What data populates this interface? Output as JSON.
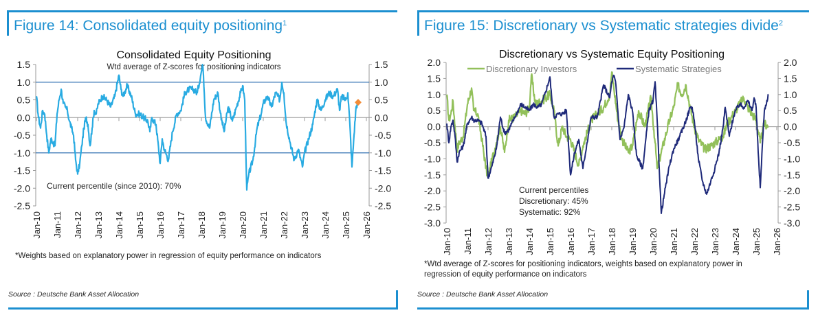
{
  "left": {
    "figure_title": "Figure 14: Consolidated equity positioning",
    "figure_sup": "1",
    "footnote": "*Weights based on explanatory power in regression of equity performance on indicators",
    "source": "Source : Deutsche Bank Asset Allocation"
  },
  "right": {
    "figure_title": "Figure 15: Discretionary vs Systematic strategies divide",
    "figure_sup": "2",
    "footnote_line1": "*Wtd average of Z-scores for positioning indicators, weights based on explanatory power in",
    "footnote_line2": "regression of equity performance on indicators",
    "source": "Source : Deutsche Bank Asset Allocation"
  },
  "colors": {
    "accent": "#1b8fd0",
    "consolidated_line": "#29abe2",
    "current_marker": "#f28c38",
    "reference_line": "#2f6fb0",
    "discretionary": "#92c05a",
    "systematic": "#1f2a7a",
    "axis": "#999999"
  },
  "chart_data": [
    {
      "type": "line",
      "title": "Consolidated Equity Positioning",
      "subtitle": "Wtd average of Z-scores for positioning indicators",
      "xlabel": "",
      "ylabel": "",
      "ylim": [
        -2.5,
        1.5
      ],
      "yticks": [
        "1.5",
        "1.0",
        "0.5",
        "0.0",
        "-0.5",
        "-1.0",
        "-1.5",
        "-2.0",
        "-2.5"
      ],
      "ytick_values": [
        1.5,
        1.0,
        0.5,
        0.0,
        -0.5,
        -1.0,
        -1.5,
        -2.0,
        -2.5
      ],
      "xlim": [
        2010.0,
        2026.0
      ],
      "xticks": [
        "Jan-10",
        "Jan-11",
        "Jan-12",
        "Jan-13",
        "Jan-14",
        "Jan-15",
        "Jan-16",
        "Jan-17",
        "Jan-18",
        "Jan-19",
        "Jan-20",
        "Jan-21",
        "Jan-22",
        "Jan-23",
        "Jan-24",
        "Jan-25",
        "Jan-26"
      ],
      "reference_lines": [
        1.0,
        -1.0
      ],
      "annotation": "Current percentile (since 2010): 70%",
      "current_point": {
        "x": 2025.6,
        "y": 0.43
      },
      "series": [
        {
          "name": "Consolidated Equity Positioning",
          "x": [
            2010.0,
            2010.1,
            2010.2,
            2010.3,
            2010.4,
            2010.5,
            2010.6,
            2010.7,
            2010.8,
            2010.9,
            2011.0,
            2011.1,
            2011.2,
            2011.3,
            2011.4,
            2011.5,
            2011.6,
            2011.7,
            2011.8,
            2011.9,
            2012.0,
            2012.1,
            2012.2,
            2012.3,
            2012.4,
            2012.5,
            2012.6,
            2012.7,
            2012.8,
            2012.9,
            2013.0,
            2013.2,
            2013.4,
            2013.6,
            2013.8,
            2014.0,
            2014.1,
            2014.2,
            2014.4,
            2014.6,
            2014.8,
            2015.0,
            2015.2,
            2015.4,
            2015.5,
            2015.6,
            2015.8,
            2016.0,
            2016.1,
            2016.2,
            2016.4,
            2016.6,
            2016.8,
            2017.0,
            2017.2,
            2017.4,
            2017.6,
            2017.8,
            2018.0,
            2018.05,
            2018.1,
            2018.2,
            2018.4,
            2018.6,
            2018.8,
            2018.9,
            2019.0,
            2019.1,
            2019.3,
            2019.5,
            2019.7,
            2019.9,
            2020.0,
            2020.1,
            2020.2,
            2020.3,
            2020.5,
            2020.7,
            2020.9,
            2021.0,
            2021.2,
            2021.4,
            2021.6,
            2021.8,
            2021.9,
            2022.0,
            2022.1,
            2022.3,
            2022.5,
            2022.7,
            2022.9,
            2023.0,
            2023.2,
            2023.4,
            2023.6,
            2023.8,
            2024.0,
            2024.2,
            2024.4,
            2024.6,
            2024.7,
            2024.8,
            2025.0,
            2025.1,
            2025.2,
            2025.3,
            2025.4,
            2025.5,
            2025.6
          ],
          "y": [
            0.6,
            0.0,
            -0.3,
            0.2,
            0.1,
            -0.5,
            -1.0,
            -0.6,
            -0.7,
            -0.8,
            0.1,
            0.5,
            0.8,
            0.4,
            0.3,
            0.2,
            -0.1,
            -0.3,
            -0.5,
            -1.2,
            -1.6,
            -1.3,
            -0.8,
            -0.3,
            0.0,
            -0.2,
            -0.8,
            -0.3,
            0.2,
            0.1,
            0.4,
            0.6,
            0.5,
            0.3,
            0.6,
            1.2,
            0.8,
            0.6,
            0.9,
            0.6,
            0.1,
            0.1,
            0.0,
            -0.1,
            -0.4,
            0.0,
            -0.2,
            -1.3,
            -0.6,
            -0.9,
            -1.2,
            -0.4,
            0.1,
            0.2,
            0.7,
            0.8,
            0.8,
            0.7,
            1.3,
            1.5,
            1.2,
            0.0,
            -0.3,
            0.5,
            0.7,
            0.2,
            -0.1,
            -0.4,
            0.3,
            -0.1,
            0.3,
            0.7,
            0.9,
            0.5,
            -2.05,
            -1.6,
            -1.2,
            -0.3,
            0.1,
            0.4,
            0.6,
            0.3,
            0.7,
            0.5,
            1.0,
            0.7,
            -0.1,
            -0.7,
            -1.2,
            -0.9,
            -1.4,
            -1.0,
            -0.6,
            -0.2,
            0.5,
            0.2,
            0.5,
            0.7,
            0.6,
            0.8,
            0.2,
            0.6,
            0.5,
            0.7,
            -0.2,
            -1.4,
            -0.5,
            0.3,
            0.45
          ]
        }
      ]
    },
    {
      "type": "line",
      "title": "Discretionary  vs Systematic Equity Positioning",
      "xlabel": "",
      "ylabel": "",
      "ylim": [
        -3.0,
        2.0
      ],
      "yticks": [
        "2.0",
        "1.5",
        "1.0",
        "0.5",
        "0.0",
        "-0.5",
        "-1.0",
        "-1.5",
        "-2.0",
        "-2.5",
        "-3.0"
      ],
      "ytick_values": [
        2.0,
        1.5,
        1.0,
        0.5,
        0.0,
        -0.5,
        -1.0,
        -1.5,
        -2.0,
        -2.5,
        -3.0
      ],
      "xlim": [
        2010.0,
        2026.0
      ],
      "xticks": [
        "Jan-10",
        "Jan-11",
        "Jan-12",
        "Jan-13",
        "Jan-14",
        "Jan-15",
        "Jan-16",
        "Jan-17",
        "Jan-18",
        "Jan-19",
        "Jan-20",
        "Jan-21",
        "Jan-22",
        "Jan-23",
        "Jan-24",
        "Jan-25",
        "Jan-26"
      ],
      "legend": [
        "Discretionary Investors",
        "Systematic Strategies"
      ],
      "legend_position": "top",
      "annotation": [
        "Current percentiles",
        "Discretionary: 45%",
        "Systematic: 92%"
      ],
      "series": [
        {
          "name": "Discretionary Investors",
          "x": [
            2010.0,
            2010.1,
            2010.2,
            2010.3,
            2010.4,
            2010.5,
            2010.6,
            2010.8,
            2011.0,
            2011.2,
            2011.3,
            2011.5,
            2011.7,
            2011.9,
            2012.0,
            2012.2,
            2012.4,
            2012.6,
            2012.8,
            2013.0,
            2013.3,
            2013.6,
            2013.8,
            2014.0,
            2014.1,
            2014.3,
            2014.6,
            2014.8,
            2015.0,
            2015.2,
            2015.4,
            2015.6,
            2015.8,
            2016.0,
            2016.2,
            2016.4,
            2016.6,
            2016.8,
            2017.0,
            2017.3,
            2017.6,
            2017.9,
            2018.0,
            2018.1,
            2018.3,
            2018.5,
            2018.8,
            2019.0,
            2019.3,
            2019.6,
            2019.9,
            2020.1,
            2020.2,
            2020.4,
            2020.6,
            2020.8,
            2021.0,
            2021.2,
            2021.4,
            2021.6,
            2021.8,
            2022.0,
            2022.2,
            2022.5,
            2022.8,
            2023.0,
            2023.2,
            2023.4,
            2023.6,
            2023.8,
            2024.0,
            2024.2,
            2024.4,
            2024.6,
            2024.8,
            2025.0,
            2025.2,
            2025.4,
            2025.6
          ],
          "y": [
            1.0,
            0.2,
            0.4,
            0.8,
            0.0,
            -0.7,
            -0.5,
            -0.3,
            0.7,
            1.2,
            0.5,
            0.4,
            -0.4,
            -1.3,
            -1.6,
            -1.0,
            -0.5,
            0.0,
            -0.8,
            0.2,
            0.3,
            0.5,
            0.4,
            0.6,
            1.6,
            0.7,
            0.8,
            0.9,
            1.0,
            0.5,
            -0.6,
            0.0,
            -0.3,
            -0.4,
            -0.8,
            -1.2,
            -0.6,
            -0.2,
            0.2,
            0.4,
            0.6,
            1.0,
            1.7,
            1.2,
            0.2,
            -0.4,
            -0.8,
            -0.6,
            0.5,
            0.0,
            0.9,
            -0.5,
            -1.3,
            -0.8,
            -0.3,
            0.2,
            0.6,
            1.3,
            1.0,
            1.3,
            0.6,
            0.0,
            -0.4,
            -0.7,
            -0.6,
            -0.5,
            -0.4,
            -0.3,
            0.1,
            0.3,
            0.5,
            0.7,
            0.9,
            0.6,
            0.4,
            0.2,
            -0.5,
            0.1,
            0.0
          ]
        },
        {
          "name": "Systematic Strategies",
          "x": [
            2010.0,
            2010.1,
            2010.2,
            2010.3,
            2010.4,
            2010.5,
            2010.6,
            2010.8,
            2011.0,
            2011.2,
            2011.3,
            2011.5,
            2011.7,
            2011.9,
            2012.0,
            2012.2,
            2012.4,
            2012.6,
            2012.8,
            2013.0,
            2013.3,
            2013.6,
            2013.8,
            2014.0,
            2014.2,
            2014.4,
            2014.6,
            2014.8,
            2015.0,
            2015.1,
            2015.2,
            2015.4,
            2015.6,
            2015.8,
            2016.0,
            2016.2,
            2016.4,
            2016.6,
            2016.8,
            2017.0,
            2017.3,
            2017.6,
            2017.9,
            2018.0,
            2018.1,
            2018.2,
            2018.4,
            2018.6,
            2018.8,
            2019.0,
            2019.2,
            2019.5,
            2019.8,
            2020.0,
            2020.1,
            2020.2,
            2020.4,
            2020.6,
            2020.8,
            2021.0,
            2021.3,
            2021.6,
            2021.8,
            2021.9,
            2022.0,
            2022.2,
            2022.4,
            2022.6,
            2022.8,
            2023.0,
            2023.2,
            2023.4,
            2023.5,
            2023.7,
            2023.9,
            2024.0,
            2024.2,
            2024.4,
            2024.6,
            2024.8,
            2024.9,
            2025.0,
            2025.1,
            2025.2,
            2025.3,
            2025.4,
            2025.6
          ],
          "y": [
            0.1,
            -0.5,
            0.0,
            0.2,
            -0.3,
            -1.1,
            -0.8,
            -0.6,
            0.1,
            0.3,
            0.2,
            0.2,
            0.1,
            -0.3,
            -1.6,
            -1.2,
            -0.7,
            0.3,
            -0.2,
            -0.1,
            0.3,
            0.7,
            0.6,
            0.5,
            0.7,
            0.6,
            0.7,
            1.1,
            1.55,
            0.8,
            0.3,
            0.4,
            0.4,
            0.5,
            -1.5,
            -0.8,
            -0.4,
            -1.3,
            -0.5,
            0.3,
            0.3,
            1.3,
            0.9,
            1.4,
            1.6,
            1.3,
            -0.4,
            0.0,
            1.0,
            0.5,
            -0.9,
            -1.3,
            0.5,
            0.8,
            1.4,
            0.2,
            -2.7,
            -1.9,
            -1.2,
            -0.7,
            -0.3,
            0.2,
            0.6,
            0.6,
            0.2,
            -1.0,
            -1.7,
            -2.1,
            -1.7,
            -1.3,
            -0.8,
            0.0,
            0.6,
            -0.3,
            0.3,
            0.5,
            0.7,
            0.6,
            0.8,
            0.5,
            0.9,
            0.6,
            -0.8,
            -1.9,
            -0.6,
            0.5,
            1.0
          ]
        }
      ]
    }
  ]
}
